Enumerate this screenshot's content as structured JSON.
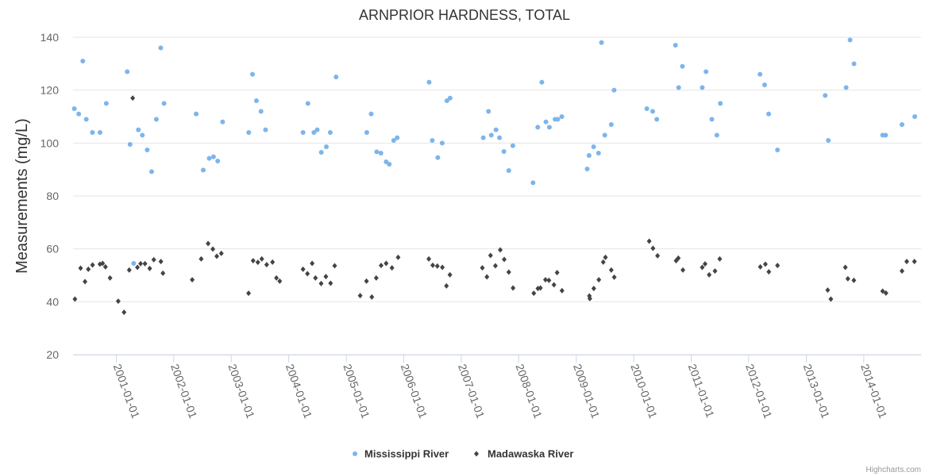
{
  "credits": "Highcharts.com",
  "chart_data": {
    "type": "scatter",
    "title": "ARNPRIOR HARDNESS, TOTAL",
    "ylabel": "Measurements (mg/L)",
    "xlabel": "",
    "ylim": [
      20,
      140
    ],
    "yticks": [
      20,
      40,
      60,
      80,
      100,
      120,
      140
    ],
    "xlim": [
      "2000-04-01",
      "2014-12-31"
    ],
    "xticks": [
      "2001-01-01",
      "2002-01-01",
      "2003-01-01",
      "2004-01-01",
      "2005-01-01",
      "2006-01-01",
      "2007-01-01",
      "2008-01-01",
      "2009-01-01",
      "2010-01-01",
      "2011-01-01",
      "2012-01-01",
      "2013-01-01",
      "2014-01-01"
    ],
    "grid": true,
    "legend": "bottom-center",
    "series": [
      {
        "name": "Mississippi River",
        "color": "#7cb5ec",
        "marker": "circle",
        "points": [
          [
            "2000-04-09",
            113
          ],
          [
            "2000-05-07",
            111
          ],
          [
            "2000-06-02",
            131
          ],
          [
            "2000-06-24",
            109
          ],
          [
            "2000-08-02",
            104
          ],
          [
            "2000-09-19",
            104
          ],
          [
            "2000-10-29",
            115
          ],
          [
            "2001-03-11",
            127
          ],
          [
            "2001-03-29",
            99.5
          ],
          [
            "2001-04-21",
            54.5
          ],
          [
            "2001-05-21",
            105
          ],
          [
            "2001-06-15",
            103
          ],
          [
            "2001-07-16",
            97.4
          ],
          [
            "2001-08-13",
            89.2
          ],
          [
            "2001-09-12",
            109
          ],
          [
            "2001-10-10",
            136
          ],
          [
            "2001-10-31",
            115
          ],
          [
            "2002-05-23",
            111
          ],
          [
            "2002-07-07",
            89.8
          ],
          [
            "2002-08-14",
            94.2
          ],
          [
            "2002-09-10",
            94.8
          ],
          [
            "2002-10-07",
            93.2
          ],
          [
            "2002-11-07",
            108
          ],
          [
            "2003-04-22",
            104
          ],
          [
            "2003-05-16",
            126
          ],
          [
            "2003-06-10",
            116
          ],
          [
            "2003-07-09",
            112
          ],
          [
            "2003-08-07",
            105
          ],
          [
            "2004-04-01",
            104
          ],
          [
            "2004-05-02",
            115
          ],
          [
            "2004-06-09",
            104
          ],
          [
            "2004-06-30",
            105
          ],
          [
            "2004-07-26",
            96.5
          ],
          [
            "2004-08-27",
            98.6
          ],
          [
            "2004-09-21",
            104
          ],
          [
            "2004-10-28",
            125
          ],
          [
            "2005-05-11",
            104
          ],
          [
            "2005-06-08",
            111
          ],
          [
            "2005-07-13",
            96.7
          ],
          [
            "2005-08-09",
            96.2
          ],
          [
            "2005-09-11",
            92.9
          ],
          [
            "2005-10-01",
            92.0
          ],
          [
            "2005-10-29",
            101
          ],
          [
            "2005-11-20",
            102
          ],
          [
            "2006-06-11",
            123
          ],
          [
            "2006-07-01",
            101
          ],
          [
            "2006-08-05",
            94.5
          ],
          [
            "2006-09-02",
            100
          ],
          [
            "2006-10-02",
            116
          ],
          [
            "2006-10-22",
            117
          ],
          [
            "2007-05-21",
            102
          ],
          [
            "2007-06-23",
            112
          ],
          [
            "2007-07-11",
            103
          ],
          [
            "2007-08-10",
            105
          ],
          [
            "2007-09-01",
            102
          ],
          [
            "2007-09-29",
            96.8
          ],
          [
            "2007-10-30",
            89.6
          ],
          [
            "2007-11-25",
            99
          ],
          [
            "2008-04-01",
            85
          ],
          [
            "2008-05-01",
            106
          ],
          [
            "2008-05-27",
            123
          ],
          [
            "2008-06-22",
            108
          ],
          [
            "2008-07-14",
            106
          ],
          [
            "2008-08-19",
            109
          ],
          [
            "2008-09-05",
            109
          ],
          [
            "2008-10-01",
            110
          ],
          [
            "2009-03-11",
            90.2
          ],
          [
            "2009-03-23",
            95.3
          ],
          [
            "2009-04-21",
            98.6
          ],
          [
            "2009-05-22",
            96.2
          ],
          [
            "2009-06-10",
            138
          ],
          [
            "2009-07-01",
            103
          ],
          [
            "2009-08-11",
            107
          ],
          [
            "2009-08-29",
            120
          ],
          [
            "2010-03-25",
            113
          ],
          [
            "2010-05-01",
            112
          ],
          [
            "2010-05-27",
            109
          ],
          [
            "2010-09-23",
            137
          ],
          [
            "2010-10-13",
            121
          ],
          [
            "2010-11-06",
            129
          ],
          [
            "2011-03-12",
            121
          ],
          [
            "2011-04-05",
            127
          ],
          [
            "2011-05-12",
            109
          ],
          [
            "2011-06-13",
            103
          ],
          [
            "2011-07-05",
            115
          ],
          [
            "2012-03-13",
            126
          ],
          [
            "2012-04-11",
            122
          ],
          [
            "2012-05-07",
            111
          ],
          [
            "2012-07-02",
            97.4
          ],
          [
            "2013-05-01",
            118
          ],
          [
            "2013-05-21",
            101
          ],
          [
            "2013-09-11",
            121
          ],
          [
            "2013-10-06",
            139
          ],
          [
            "2013-10-31",
            130
          ],
          [
            "2014-05-01",
            103
          ],
          [
            "2014-05-20",
            103
          ],
          [
            "2014-09-01",
            107
          ],
          [
            "2014-11-21",
            110
          ]
        ]
      },
      {
        "name": "Madawaska River",
        "color": "#434348",
        "marker": "diamond",
        "points": [
          [
            "2000-04-13",
            41
          ],
          [
            "2000-05-19",
            52.7
          ],
          [
            "2000-06-16",
            47.6
          ],
          [
            "2000-07-07",
            52.3
          ],
          [
            "2000-08-03",
            53.9
          ],
          [
            "2000-09-19",
            54.2
          ],
          [
            "2000-10-06",
            54.5
          ],
          [
            "2000-10-24",
            53.2
          ],
          [
            "2000-11-22",
            49
          ],
          [
            "2001-01-13",
            40.2
          ],
          [
            "2001-02-19",
            36
          ],
          [
            "2001-03-24",
            52
          ],
          [
            "2001-04-15",
            117
          ],
          [
            "2001-05-15",
            53
          ],
          [
            "2001-06-04",
            54.4
          ],
          [
            "2001-07-02",
            54.4
          ],
          [
            "2001-08-01",
            52.6
          ],
          [
            "2001-08-27",
            55.9
          ],
          [
            "2001-10-11",
            55.2
          ],
          [
            "2001-10-24",
            50.8
          ],
          [
            "2002-04-28",
            48.3
          ],
          [
            "2002-06-24",
            56.2
          ],
          [
            "2002-08-07",
            62
          ],
          [
            "2002-09-06",
            59.9
          ],
          [
            "2002-10-01",
            57.2
          ],
          [
            "2002-10-30",
            58.3
          ],
          [
            "2003-04-21",
            43.2
          ],
          [
            "2003-05-20",
            55.5
          ],
          [
            "2003-06-19",
            54.9
          ],
          [
            "2003-07-14",
            56.2
          ],
          [
            "2003-08-14",
            54
          ],
          [
            "2003-09-20",
            55
          ],
          [
            "2003-10-15",
            49
          ],
          [
            "2003-11-05",
            47.8
          ],
          [
            "2004-04-01",
            52.3
          ],
          [
            "2004-04-29",
            50.6
          ],
          [
            "2004-05-29",
            54.5
          ],
          [
            "2004-06-19",
            49
          ],
          [
            "2004-07-25",
            46.9
          ],
          [
            "2004-08-24",
            49.5
          ],
          [
            "2004-09-23",
            47
          ],
          [
            "2004-10-19",
            53.6
          ],
          [
            "2005-03-30",
            42.3
          ],
          [
            "2005-05-09",
            47.8
          ],
          [
            "2005-06-12",
            41.8
          ],
          [
            "2005-07-10",
            49
          ],
          [
            "2005-08-10",
            53.7
          ],
          [
            "2005-09-11",
            54.5
          ],
          [
            "2005-10-18",
            52.8
          ],
          [
            "2005-11-26",
            56.8
          ],
          [
            "2006-06-09",
            56.2
          ],
          [
            "2006-07-04",
            53.8
          ],
          [
            "2006-08-02",
            53.5
          ],
          [
            "2006-09-03",
            53
          ],
          [
            "2006-09-29",
            46
          ],
          [
            "2006-10-21",
            50.2
          ],
          [
            "2007-05-15",
            52.8
          ],
          [
            "2007-06-13",
            49.4
          ],
          [
            "2007-07-06",
            57.5
          ],
          [
            "2007-08-06",
            53.6
          ],
          [
            "2007-09-06",
            59.6
          ],
          [
            "2007-10-01",
            56
          ],
          [
            "2007-10-30",
            51.2
          ],
          [
            "2007-11-26",
            45.2
          ],
          [
            "2008-04-06",
            43.2
          ],
          [
            "2008-05-02",
            45
          ],
          [
            "2008-05-18",
            45.2
          ],
          [
            "2008-06-19",
            48.3
          ],
          [
            "2008-07-11",
            48.1
          ],
          [
            "2008-08-12",
            46.4
          ],
          [
            "2008-09-01",
            51
          ],
          [
            "2008-10-02",
            44.2
          ],
          [
            "2009-03-25",
            42.2
          ],
          [
            "2009-03-28",
            41.2
          ],
          [
            "2009-04-22",
            45
          ],
          [
            "2009-05-24",
            48.3
          ],
          [
            "2009-06-21",
            55
          ],
          [
            "2009-07-05",
            56.8
          ],
          [
            "2009-08-11",
            52
          ],
          [
            "2009-08-30",
            49.3
          ],
          [
            "2010-04-09",
            62.9
          ],
          [
            "2010-05-03",
            60.2
          ],
          [
            "2010-06-01",
            57.4
          ],
          [
            "2010-09-27",
            55.5
          ],
          [
            "2010-10-11",
            56.5
          ],
          [
            "2010-11-09",
            52
          ],
          [
            "2011-03-12",
            53
          ],
          [
            "2011-03-30",
            54.3
          ],
          [
            "2011-04-25",
            50.2
          ],
          [
            "2011-06-01",
            51.6
          ],
          [
            "2011-07-01",
            56.2
          ],
          [
            "2012-03-15",
            53.2
          ],
          [
            "2012-04-16",
            54.2
          ],
          [
            "2012-05-08",
            51.3
          ],
          [
            "2012-07-02",
            53.7
          ],
          [
            "2013-05-17",
            44.4
          ],
          [
            "2013-06-06",
            41
          ],
          [
            "2013-09-06",
            53
          ],
          [
            "2013-09-22",
            48.7
          ],
          [
            "2013-10-30",
            48.1
          ],
          [
            "2014-05-01",
            44
          ],
          [
            "2014-05-22",
            43.3
          ],
          [
            "2014-09-01",
            51.6
          ],
          [
            "2014-10-01",
            55.2
          ],
          [
            "2014-11-19",
            55.2
          ]
        ]
      }
    ]
  }
}
